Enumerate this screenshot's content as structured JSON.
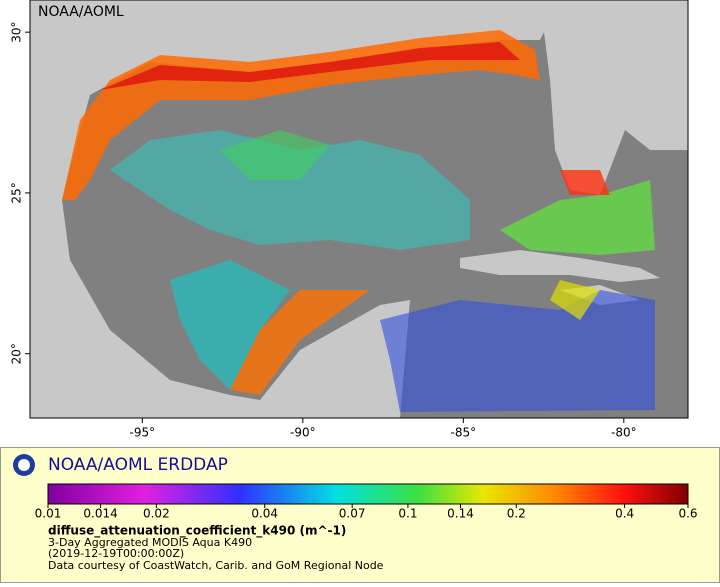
{
  "map": {
    "watermark": "NOAA/AOML",
    "xlim": [
      -98.5,
      -78
    ],
    "ylim": [
      18,
      31
    ],
    "xticks": [
      {
        "value": -95,
        "label": "-95°"
      },
      {
        "value": -90,
        "label": "-90°"
      },
      {
        "value": -85,
        "label": "-85°"
      },
      {
        "value": -80,
        "label": "-80°"
      }
    ],
    "yticks": [
      {
        "value": 20,
        "label": "20°"
      },
      {
        "value": 25,
        "label": "25°"
      },
      {
        "value": 30,
        "label": "30°"
      }
    ]
  },
  "legend": {
    "title": "NOAA/AOML ERDDAP",
    "colorbar": {
      "log": true,
      "range": [
        0.01,
        0.6
      ],
      "ticks": [
        0.01,
        0.014,
        0.02,
        0.04,
        0.07,
        0.1,
        0.14,
        0.2,
        0.4,
        0.6
      ]
    },
    "variable": "diffuse_attenuation_coefficient_k490 (m^-1)",
    "description": "3-Day Aggregated MODIS Aqua K490",
    "time": "(2019-12-19T00:00:00Z)",
    "credit": "Data courtesy of CoastWatch, Carib. and GoM Regional Node"
  }
}
